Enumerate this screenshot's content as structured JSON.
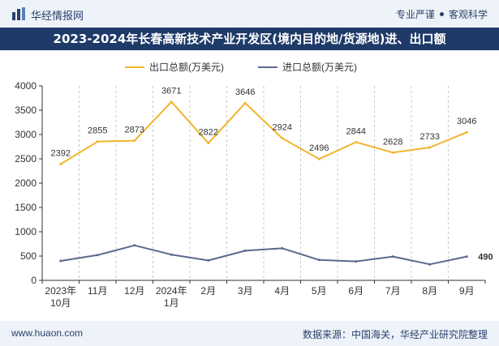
{
  "header": {
    "brand": "华经情报网",
    "tagline_left": "专业严谨",
    "tagline_right": "客观科学"
  },
  "title": "2023-2024年长春高新技术产业开发区(境内目的地/货源地)进、出口额",
  "footer": {
    "url": "www.huaon.com",
    "source": "数据来源：中国海关，华经产业研究院整理"
  },
  "colors": {
    "export": "#f0b52a",
    "import": "#5a6a8c",
    "title_bg": "#1e3a68"
  },
  "chart_data": {
    "type": "line",
    "categories": [
      "2023年10月",
      "11月",
      "12月",
      "2024年1月",
      "2月",
      "3月",
      "4月",
      "5月",
      "6月",
      "7月",
      "8月",
      "9月"
    ],
    "category_lines": [
      [
        "2023年",
        "10月"
      ],
      [
        "11月"
      ],
      [
        "12月"
      ],
      [
        "2024年",
        "1月"
      ],
      [
        "2月"
      ],
      [
        "3月"
      ],
      [
        "4月"
      ],
      [
        "5月"
      ],
      [
        "6月"
      ],
      [
        "7月"
      ],
      [
        "8月"
      ],
      [
        "9月"
      ]
    ],
    "series": [
      {
        "name": "出口总额(万美元)",
        "values": [
          2392,
          2855,
          2873,
          3671,
          2822,
          3646,
          2924,
          2496,
          2844,
          2628,
          2733,
          3046
        ],
        "labels": [
          "2392",
          "2855",
          "2873",
          "3671",
          "2822",
          "3646",
          "2924",
          "2496",
          "2844",
          "2628",
          "2733",
          "3046"
        ]
      },
      {
        "name": "进口总额(万美元)",
        "values": [
          400,
          520,
          720,
          530,
          410,
          610,
          660,
          420,
          390,
          490,
          330,
          490
        ],
        "labels": [
          "",
          "",
          "",
          "",
          "",
          "",
          "",
          "",
          "",
          "",
          "",
          "490"
        ]
      }
    ],
    "ylim": [
      0,
      4000
    ],
    "yticks": [
      0,
      500,
      1000,
      1500,
      2000,
      2500,
      3000,
      3500,
      4000
    ],
    "legend": "top-center",
    "grid": "vertical-dashed"
  }
}
